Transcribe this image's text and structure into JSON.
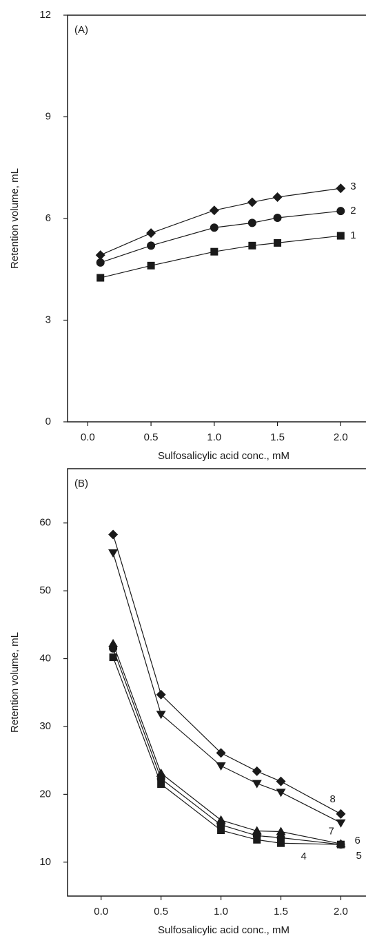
{
  "chart_data": [
    {
      "type": "line",
      "title": "(A)",
      "x_label": "Sulfosalicylic acid conc., mM",
      "y_label": "Retention volume, mL",
      "x": [
        0.1,
        0.5,
        1.0,
        1.3,
        1.5,
        2.0
      ],
      "xlim": [
        -0.16,
        2.2
      ],
      "ylim": [
        0,
        12
      ],
      "xticks": [
        {
          "value": 0,
          "label": "0.0"
        },
        0.5,
        {
          "value": 1,
          "label": "1.0"
        },
        1.5,
        {
          "value": 2,
          "label": "2.0"
        }
      ],
      "yticks": [
        0,
        3,
        6,
        9,
        12
      ],
      "series": [
        {
          "name": "1",
          "marker": "square",
          "color": "#1a1a1a",
          "values": [
            4.25,
            4.61,
            5.02,
            5.2,
            5.28,
            5.49
          ]
        },
        {
          "name": "2",
          "marker": "circle",
          "color": "#1a1a1a",
          "values": [
            4.7,
            5.2,
            5.73,
            5.87,
            6.02,
            6.22
          ]
        },
        {
          "name": "3",
          "marker": "diamond",
          "color": "#1a1a1a",
          "values": [
            4.92,
            5.57,
            6.24,
            6.48,
            6.63,
            6.89
          ]
        }
      ]
    },
    {
      "type": "line",
      "title": "(B)",
      "x_label": "Sulfosalicylic acid conc., mM",
      "y_label": "Retention volume, mL",
      "x": [
        0.1,
        0.5,
        1.0,
        1.3,
        1.5,
        2.0
      ],
      "xlim": [
        -0.28,
        2.21
      ],
      "ylim": [
        5,
        68
      ],
      "xticks": [
        {
          "value": 0,
          "label": "0.0"
        },
        0.5,
        {
          "value": 1,
          "label": "1.0"
        },
        1.5,
        {
          "value": 2,
          "label": "2.0"
        }
      ],
      "yticks": [
        10,
        20,
        30,
        40,
        50,
        60
      ],
      "series": [
        {
          "name": "4",
          "marker": "square",
          "color": "#1a1a1a",
          "values": [
            40.2,
            21.5,
            14.7,
            13.3,
            12.8,
            12.6
          ]
        },
        {
          "name": "5",
          "marker": "circle",
          "color": "#1a1a1a",
          "values": [
            41.5,
            22.3,
            15.5,
            13.9,
            13.6,
            12.6
          ]
        },
        {
          "name": "6",
          "marker": "triangle-up",
          "color": "#1a1a1a",
          "values": [
            42.2,
            23.1,
            16.2,
            14.6,
            14.5,
            12.7
          ]
        },
        {
          "name": "7",
          "marker": "triangle-down",
          "color": "#1a1a1a",
          "values": [
            55.6,
            31.8,
            24.2,
            21.6,
            20.3,
            15.8
          ]
        },
        {
          "name": "8",
          "marker": "diamond",
          "color": "#1a1a1a",
          "values": [
            58.3,
            34.7,
            26.1,
            23.4,
            21.9,
            17.1
          ]
        }
      ]
    }
  ]
}
